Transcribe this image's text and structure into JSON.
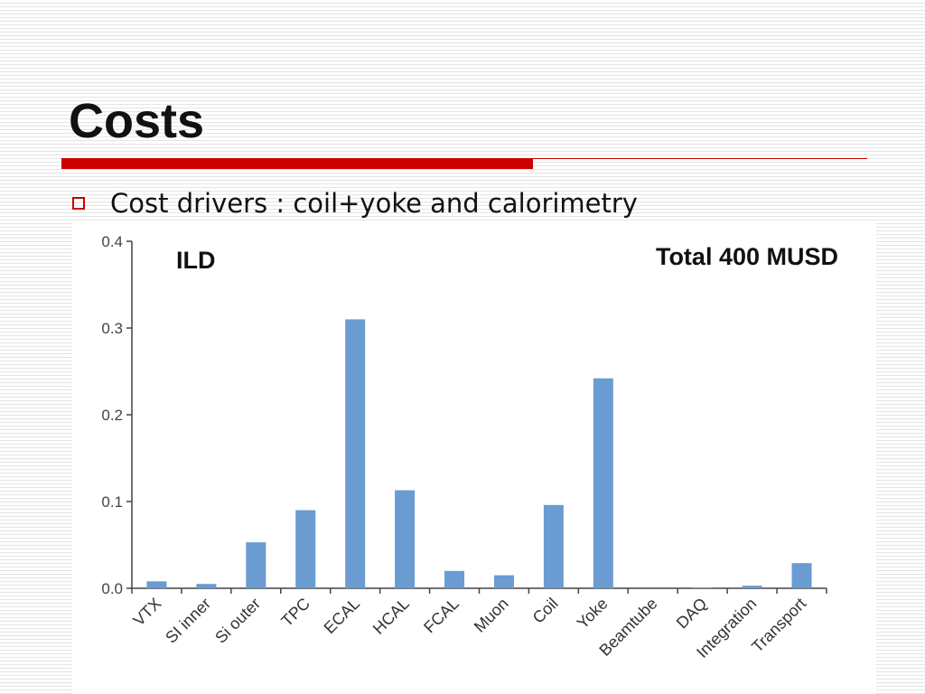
{
  "slide": {
    "title": "Costs",
    "bullet": "Cost drivers : coil+yoke and calorimetry"
  },
  "chart_data": {
    "type": "bar",
    "title": "ILD",
    "annotation": "Total 400 MUSD",
    "xlabel": "",
    "ylabel": "",
    "categories": [
      "VTX",
      "SI inner",
      "Si outer",
      "TPC",
      "ECAL",
      "HCAL",
      "FCAL",
      "Muon",
      "Coil",
      "Yoke",
      "Beamtube",
      "DAQ",
      "Integration",
      "Transport"
    ],
    "values": [
      0.008,
      0.005,
      0.053,
      0.09,
      0.31,
      0.113,
      0.02,
      0.015,
      0.096,
      0.242,
      0.0,
      0.001,
      0.003,
      0.029
    ],
    "ylim": [
      0,
      0.4
    ],
    "yticks": [
      "0.0",
      "0.1",
      "0.2",
      "0.3",
      "0.4"
    ],
    "grid": false,
    "legend": "none",
    "bar_color": "#6a9bd1"
  }
}
